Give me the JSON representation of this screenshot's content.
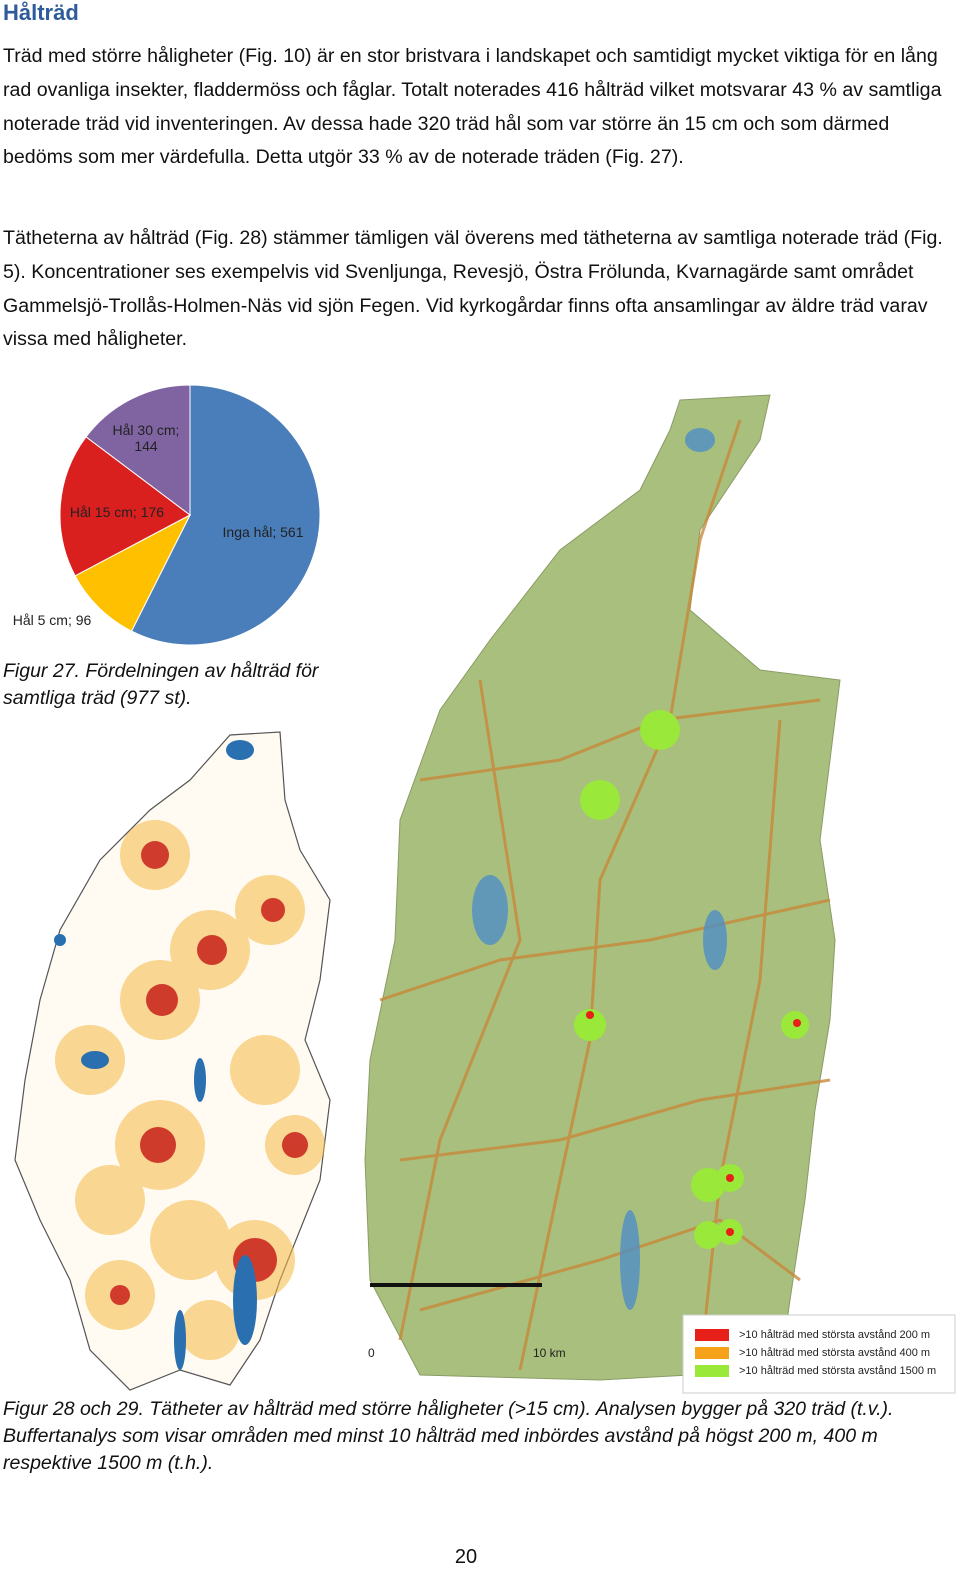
{
  "header": {
    "title": "Hålträd"
  },
  "paragraphs": [
    "Träd med större håligheter (Fig. 10) är en stor bristvara i landskapet och samtidigt mycket viktiga för en lång rad ovanliga insekter, fladdermöss och fåglar. Totalt noterades 416 hålträd vilket motsvarar 43 % av samtliga noterade träd vid inventeringen. Av dessa hade 320 träd hål som var större än 15 cm och som därmed bedöms som mer värdefulla. Detta utgör 33 % av de noterade träden (Fig. 27).",
    "Tätheterna av hålträd (Fig. 28) stämmer tämligen väl överens med tätheterna av samtliga noterade träd (Fig. 5). Koncentrationer ses exempelvis vid Svenljunga, Revesjö, Östra Frölunda, Kvarnagärde samt området Gammelsjö-Trollås-Holmen-Näs vid sjön Fegen. Vid kyrkogårdar finns ofta ansamlingar av äldre träd varav vissa med håligheter."
  ],
  "chart_data": {
    "type": "pie",
    "values": [
      561,
      96,
      176,
      144
    ],
    "value_labels": [
      "Inga hål; 561",
      "Hål 5 cm; 96",
      "Hål 15 cm; 176",
      "Hål 30 cm; 144"
    ],
    "colors": [
      "#4a7ebb",
      "#ffc000",
      "#d9201f",
      "#8064a2"
    ]
  },
  "figure27_caption": "Figur 27. Fördelningen av hålträd för samtliga träd (977 st).",
  "map": {
    "scale_labels": [
      "0",
      "10 km"
    ],
    "legend": [
      {
        "label": ">10 hålträd med största avstånd 200 m",
        "color": "#e8201a"
      },
      {
        "label": ">10 hålträd med största avstånd 400 m",
        "color": "#f5a21a"
      },
      {
        "label": ">10 hålträd med största avstånd 1500 m",
        "color": "#99e83a"
      }
    ]
  },
  "figure28_caption": "Figur 28 och 29. Tätheter av hålträd med större håligheter (>15 cm). Analysen bygger på 320 träd (t.v.). Buffertanalys som visar områden med minst 10 hålträd med inbördes avstånd på högst 200 m, 400 m respektive 1500 m (t.h.).",
  "page_number": "20"
}
